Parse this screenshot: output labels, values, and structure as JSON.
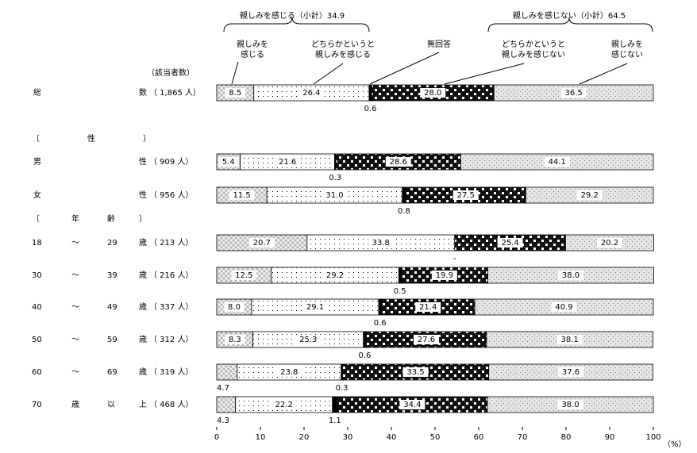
{
  "chart_data": {
    "type": "stacked-bar-horizontal",
    "count_header": "（該当者数）",
    "x_unit": "（%）",
    "subtotals": [
      {
        "label": "親しみを感じる（小計）",
        "value": 34.9
      },
      {
        "label": "親しみを感じない（小計）",
        "value": 64.5
      }
    ],
    "sections": [
      [
        "〔",
        "性",
        "〕"
      ],
      [
        "〔",
        "年",
        "齢",
        "〕"
      ]
    ],
    "categories": [
      [
        "総",
        "数"
      ],
      [
        "男",
        "性"
      ],
      [
        "女",
        "性"
      ],
      [
        "18",
        "〜",
        "29",
        "歳"
      ],
      [
        "30",
        "〜",
        "39",
        "歳"
      ],
      [
        "40",
        "〜",
        "49",
        "歳"
      ],
      [
        "50",
        "〜",
        "59",
        "歳"
      ],
      [
        "60",
        "〜",
        "69",
        "歳"
      ],
      [
        "70",
        "歳",
        "以",
        "上"
      ]
    ],
    "counts": [
      "（ 1,865 人）",
      "（ 909 人）",
      "（ 956 人）",
      "（ 213 人）",
      "（ 216 人）",
      "（ 337 人）",
      "（ 312 人）",
      "（ 319 人）",
      "（ 468 人）"
    ],
    "series": [
      {
        "name": "親しみを\n感じる",
        "color": "#b8b8b8",
        "values": [
          8.5,
          5.4,
          11.5,
          20.7,
          12.5,
          8.0,
          8.3,
          4.7,
          4.3
        ],
        "value_labels": [
          "8.5",
          "5.4",
          "11.5",
          "20.7",
          "12.5",
          "8.0",
          "8.3",
          "4.7",
          "4.3"
        ]
      },
      {
        "name": "どちらかというと\n親しみを感じる",
        "color": "#ffffff",
        "values": [
          26.4,
          21.6,
          31.0,
          33.8,
          29.2,
          29.1,
          25.3,
          23.8,
          22.2
        ],
        "value_labels": [
          "26.4",
          "21.6",
          "31.0",
          "33.8",
          "29.2",
          "29.1",
          "25.3",
          "23.8",
          "22.2"
        ]
      },
      {
        "name": "無回答",
        "color": "#000000",
        "values": [
          0.6,
          0.3,
          0.8,
          0,
          0.5,
          0.6,
          0.6,
          0.3,
          1.1
        ],
        "value_labels": [
          "0.6",
          "0.3",
          "0.8",
          "-",
          "0.5",
          "0.6",
          "0.6",
          "0.3",
          "1.1"
        ]
      },
      {
        "name": "どちらかというと\n親しみを感じない",
        "color": "#111111",
        "values": [
          28.0,
          28.6,
          27.5,
          25.4,
          19.9,
          21.4,
          27.6,
          33.5,
          34.4
        ],
        "value_labels": [
          "28.0",
          "28.6",
          "27.5",
          "25.4",
          "19.9",
          "21.4",
          "27.6",
          "33.5",
          "34.4"
        ]
      },
      {
        "name": "親しみを\n感じない",
        "color": "#e4e4e4",
        "values": [
          36.5,
          44.1,
          29.2,
          20.2,
          38.0,
          40.9,
          38.1,
          37.6,
          38.0
        ],
        "value_labels": [
          "36.5",
          "44.1",
          "29.2",
          "20.2",
          "38.0",
          "40.9",
          "38.1",
          "37.6",
          "38.0"
        ]
      }
    ],
    "xlim": [
      0,
      100
    ],
    "xticks": [
      0,
      10,
      20,
      30,
      40,
      50,
      60,
      70,
      80,
      90,
      100
    ]
  }
}
